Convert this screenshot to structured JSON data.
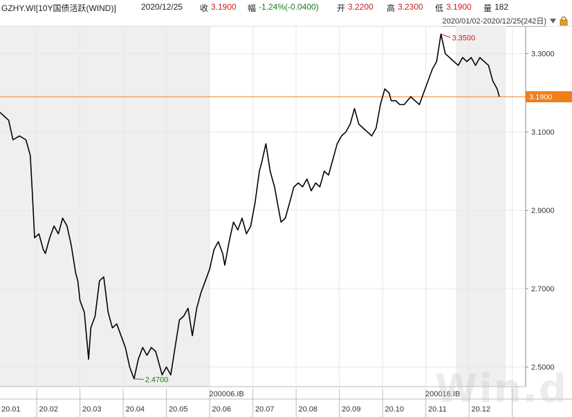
{
  "header": {
    "symbol": "GZHY.WI[10Y国债活跃(WIND)]",
    "date": "2020/12/25",
    "close_label": "收",
    "close": "3.1900",
    "change_label": "幅",
    "change": "-1.24%(-0.0400)",
    "open_label": "开",
    "open": "3.2200",
    "high_label": "高",
    "high": "3.2300",
    "low_label": "低",
    "low": "3.1900",
    "volume_label": "量",
    "volume": "182"
  },
  "range_selector": {
    "text": "2020/01/02-2020/12/25(242日)",
    "icons": [
      "dropdown-icon",
      "lock-icon"
    ]
  },
  "watermark": "Win.d",
  "colors": {
    "line": "#000000",
    "last_price_line": "#f07d1a",
    "shade": "#efefef",
    "grid": "#e6e6e6",
    "max_label": "#c81e1e",
    "min_label": "#1a7a1a"
  },
  "chart_data": {
    "type": "line",
    "title": "GZHY.WI[10Y国债活跃(WIND)]",
    "ylim": [
      2.45,
      3.37
    ],
    "yticks": [
      "3.3000",
      "3.1000",
      "2.9000",
      "2.7000",
      "2.5000"
    ],
    "ytick_values": [
      3.3,
      3.1,
      2.9,
      2.7,
      2.5
    ],
    "x_month_labels": [
      "20.01",
      "20.02",
      "20.03",
      "20.04",
      "20.05",
      "20.06",
      "20.07",
      "20.08",
      "20.09",
      "20.10",
      "20.11",
      "20.12"
    ],
    "contract_labels": [
      {
        "text": "200006.IB",
        "month_index": 5
      },
      {
        "text": "200016.IB",
        "month_index": 10
      }
    ],
    "last_value": 3.19,
    "last_value_label": "3.1900",
    "max": {
      "value": 3.35,
      "label": "3.3500",
      "month_pos": 10.2
    },
    "min": {
      "value": 2.47,
      "label": "2.4700",
      "month_pos": 3.1
    },
    "series": [
      {
        "values": [
          [
            0.0,
            3.15
          ],
          [
            0.1,
            3.14
          ],
          [
            0.2,
            3.13
          ],
          [
            0.3,
            3.08
          ],
          [
            0.45,
            3.09
          ],
          [
            0.6,
            3.08
          ],
          [
            0.7,
            3.04
          ],
          [
            0.75,
            2.94
          ],
          [
            0.8,
            2.83
          ],
          [
            0.9,
            2.84
          ],
          [
            1.0,
            2.8
          ],
          [
            1.05,
            2.79
          ],
          [
            1.15,
            2.83
          ],
          [
            1.25,
            2.86
          ],
          [
            1.35,
            2.84
          ],
          [
            1.45,
            2.88
          ],
          [
            1.55,
            2.86
          ],
          [
            1.65,
            2.81
          ],
          [
            1.75,
            2.74
          ],
          [
            1.8,
            2.72
          ],
          [
            1.85,
            2.67
          ],
          [
            1.95,
            2.64
          ],
          [
            2.0,
            2.58
          ],
          [
            2.05,
            2.52
          ],
          [
            2.1,
            2.6
          ],
          [
            2.2,
            2.63
          ],
          [
            2.3,
            2.72
          ],
          [
            2.4,
            2.73
          ],
          [
            2.5,
            2.64
          ],
          [
            2.6,
            2.6
          ],
          [
            2.7,
            2.61
          ],
          [
            2.8,
            2.58
          ],
          [
            2.9,
            2.55
          ],
          [
            3.0,
            2.5
          ],
          [
            3.1,
            2.47
          ],
          [
            3.2,
            2.52
          ],
          [
            3.3,
            2.55
          ],
          [
            3.4,
            2.53
          ],
          [
            3.5,
            2.55
          ],
          [
            3.6,
            2.54
          ],
          [
            3.7,
            2.5
          ],
          [
            3.75,
            2.48
          ],
          [
            3.85,
            2.5
          ],
          [
            3.95,
            2.48
          ],
          [
            4.05,
            2.55
          ],
          [
            4.15,
            2.62
          ],
          [
            4.25,
            2.63
          ],
          [
            4.35,
            2.65
          ],
          [
            4.45,
            2.58
          ],
          [
            4.55,
            2.65
          ],
          [
            4.65,
            2.69
          ],
          [
            4.75,
            2.72
          ],
          [
            4.85,
            2.75
          ],
          [
            4.95,
            2.8
          ],
          [
            5.05,
            2.82
          ],
          [
            5.15,
            2.79
          ],
          [
            5.2,
            2.76
          ],
          [
            5.3,
            2.82
          ],
          [
            5.4,
            2.87
          ],
          [
            5.5,
            2.85
          ],
          [
            5.6,
            2.88
          ],
          [
            5.7,
            2.84
          ],
          [
            5.8,
            2.86
          ],
          [
            5.9,
            2.92
          ],
          [
            6.0,
            3.0
          ],
          [
            6.05,
            3.02
          ],
          [
            6.15,
            3.07
          ],
          [
            6.25,
            3.0
          ],
          [
            6.35,
            2.96
          ],
          [
            6.45,
            2.9
          ],
          [
            6.5,
            2.87
          ],
          [
            6.6,
            2.88
          ],
          [
            6.7,
            2.92
          ],
          [
            6.8,
            2.96
          ],
          [
            6.9,
            2.97
          ],
          [
            7.0,
            2.96
          ],
          [
            7.1,
            2.98
          ],
          [
            7.2,
            2.95
          ],
          [
            7.3,
            2.97
          ],
          [
            7.4,
            2.96
          ],
          [
            7.5,
            3.0
          ],
          [
            7.6,
            2.99
          ],
          [
            7.7,
            3.03
          ],
          [
            7.8,
            3.07
          ],
          [
            7.9,
            3.09
          ],
          [
            8.0,
            3.1
          ],
          [
            8.1,
            3.12
          ],
          [
            8.2,
            3.16
          ],
          [
            8.3,
            3.12
          ],
          [
            8.4,
            3.11
          ],
          [
            8.5,
            3.1
          ],
          [
            8.6,
            3.09
          ],
          [
            8.7,
            3.11
          ],
          [
            8.8,
            3.17
          ],
          [
            8.9,
            3.21
          ],
          [
            9.0,
            3.2
          ],
          [
            9.05,
            3.18
          ],
          [
            9.15,
            3.18
          ],
          [
            9.25,
            3.17
          ],
          [
            9.35,
            3.17
          ],
          [
            9.5,
            3.19
          ],
          [
            9.6,
            3.18
          ],
          [
            9.7,
            3.17
          ],
          [
            9.8,
            3.2
          ],
          [
            9.9,
            3.23
          ],
          [
            10.0,
            3.26
          ],
          [
            10.1,
            3.28
          ],
          [
            10.2,
            3.35
          ],
          [
            10.3,
            3.3
          ],
          [
            10.4,
            3.29
          ],
          [
            10.5,
            3.28
          ],
          [
            10.6,
            3.27
          ],
          [
            10.7,
            3.29
          ],
          [
            10.8,
            3.28
          ],
          [
            10.9,
            3.29
          ],
          [
            11.0,
            3.27
          ],
          [
            11.1,
            3.29
          ],
          [
            11.2,
            3.28
          ],
          [
            11.3,
            3.27
          ],
          [
            11.4,
            3.23
          ],
          [
            11.5,
            3.21
          ],
          [
            11.55,
            3.19
          ]
        ]
      }
    ],
    "grid": true,
    "xlabel": "",
    "ylabel": ""
  }
}
